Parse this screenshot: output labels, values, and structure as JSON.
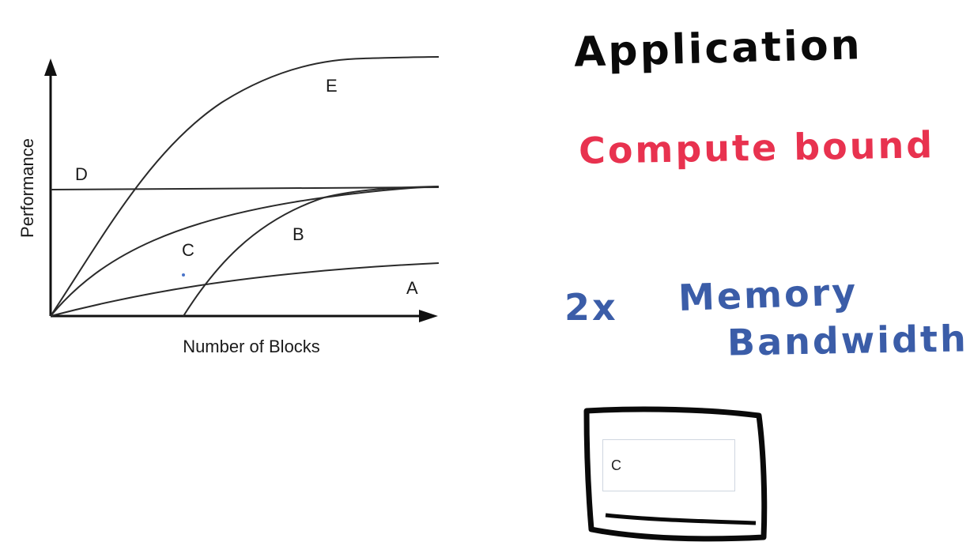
{
  "chart_data": {
    "type": "line",
    "xlabel": "Number of Blocks",
    "ylabel": "Performance",
    "grid": false,
    "series": [
      {
        "name": "A"
      },
      {
        "name": "B"
      },
      {
        "name": "C"
      },
      {
        "name": "D"
      },
      {
        "name": "E"
      }
    ]
  },
  "notes": {
    "title": "Application",
    "compute": "Compute bound",
    "memory_prefix": "2x",
    "memory_line1": "Memory",
    "memory_line2": "Bandwidth"
  },
  "answer": {
    "value": "C"
  }
}
